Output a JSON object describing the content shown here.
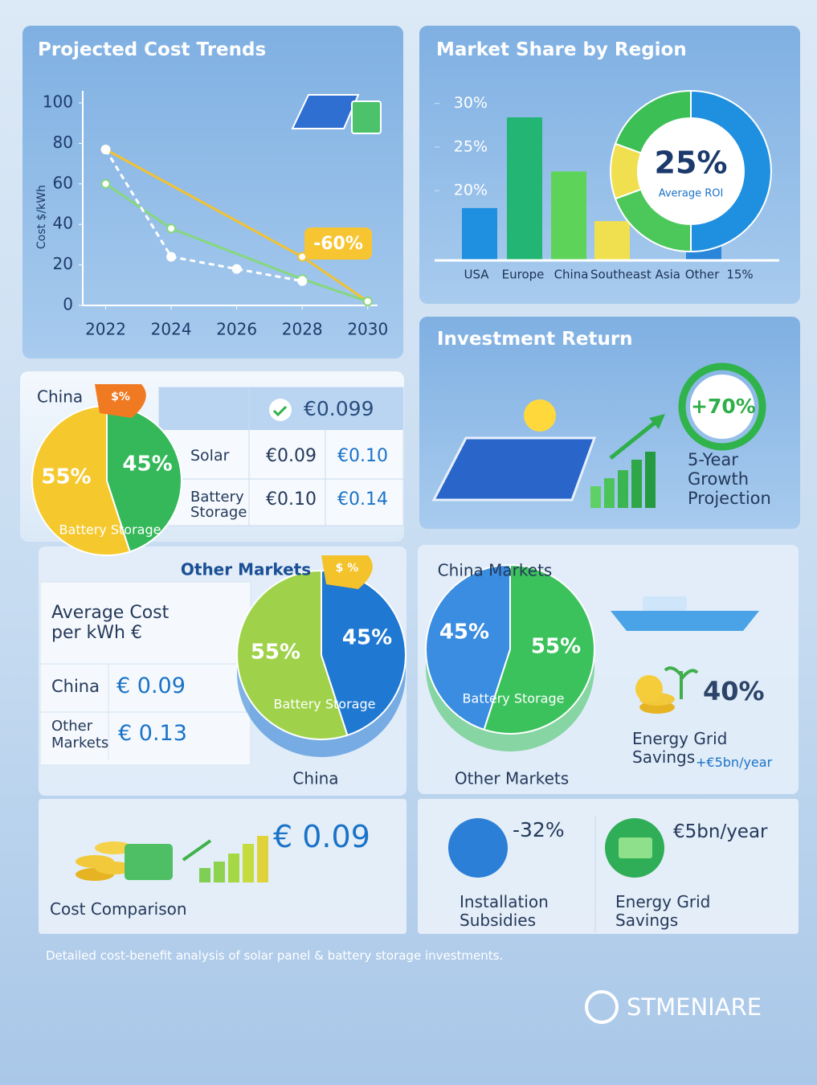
{
  "chart_data": [
    {
      "type": "line",
      "title": "Projected Cost Trends",
      "y_label": "Cost $/kWh",
      "annotation": "-60%",
      "xlim": [
        2021.3,
        2030.3
      ],
      "xticks": [
        2022,
        2024,
        2026,
        2028,
        2030
      ],
      "ylim": [
        0,
        100
      ],
      "yticks": [
        0,
        20,
        40,
        60,
        80,
        100
      ],
      "series": [
        {
          "color": "#f2c230",
          "x": [
            2022,
            2028,
            2030
          ],
          "values": [
            77,
            24,
            2
          ]
        },
        {
          "color": "#86d77e",
          "x": [
            2022,
            2024,
            2028,
            2030
          ],
          "values": [
            60,
            38,
            13,
            2
          ]
        },
        {
          "color": "#ffffff",
          "dashed": true,
          "x": [
            2022,
            2024,
            2026,
            2028
          ],
          "values": [
            77,
            24,
            18,
            12
          ]
        }
      ]
    },
    {
      "type": "bar",
      "title": "Market Share by Region",
      "categories": [
        "USA",
        "Europe",
        "China",
        "Southeast Asia",
        "Other"
      ],
      "values": [
        18,
        28.4,
        22.2,
        16.5,
        15
      ],
      "value_labels": [
        null,
        null,
        null,
        null,
        "15%"
      ],
      "colors": [
        "#1f8fe0",
        "#22b573",
        "#5ed35a",
        "#f0e050",
        "#2a86d8"
      ],
      "ylim": [
        12,
        32
      ],
      "yticks": [
        {
          "value": 20,
          "label": "20%"
        },
        {
          "value": 25,
          "label": "25%"
        },
        {
          "value": 30,
          "label": "30%"
        }
      ]
    },
    {
      "type": "pie",
      "title": "China",
      "tag": "$%",
      "annotation": "Battery Storage",
      "values": [
        55,
        45
      ],
      "value_labels": [
        "55%",
        "45%"
      ],
      "colors": [
        "#f5c92e",
        "#35b85a"
      ]
    },
    {
      "type": "pie",
      "title": "Other Markets",
      "caption": "China",
      "tag": "$ %",
      "annotation": "Battery Storage",
      "values": [
        55,
        45
      ],
      "value_labels": [
        "55%",
        "45%"
      ],
      "colors": [
        "#9fd24a",
        "#1f78d1"
      ]
    },
    {
      "type": "pie",
      "title": "China Markets",
      "caption": "Other Markets",
      "annotation": "Battery Storage",
      "values": [
        45,
        55
      ],
      "value_labels": [
        "45%",
        "55%"
      ],
      "colors": [
        "#3a8de0",
        "#3cc25c"
      ]
    }
  ],
  "donut": {
    "value": "25%",
    "label": "Average ROI"
  },
  "table": {
    "header": "€0.099",
    "rows": [
      [
        "Solar",
        "€0.09",
        "€0.10"
      ],
      [
        "Battery Storage",
        "€0.10",
        "€0.14"
      ]
    ]
  },
  "investment": {
    "title": "Investment Return",
    "growth": "+70%",
    "caption": "5-Year Growth Projection"
  },
  "average_cost": {
    "title": "Average Cost per kWh €",
    "rows": [
      [
        "China",
        "€ 0.09"
      ],
      [
        "Other Markets",
        "€ 0.13"
      ]
    ]
  },
  "savings": {
    "value": "40%",
    "label": "Energy Grid Savings",
    "amount": "+€5bn/year"
  },
  "cost_comparison": {
    "value": "€ 0.09",
    "label": "Cost Comparison"
  },
  "subsidies": {
    "value": "-32%",
    "label": "Installation Subsidies"
  },
  "grid_savings": {
    "value": "€5bn/year",
    "label": "Energy Grid Savings"
  },
  "footer": "Detailed cost-benefit analysis of solar panel & battery storage investments.",
  "logo": "STMENIARE"
}
